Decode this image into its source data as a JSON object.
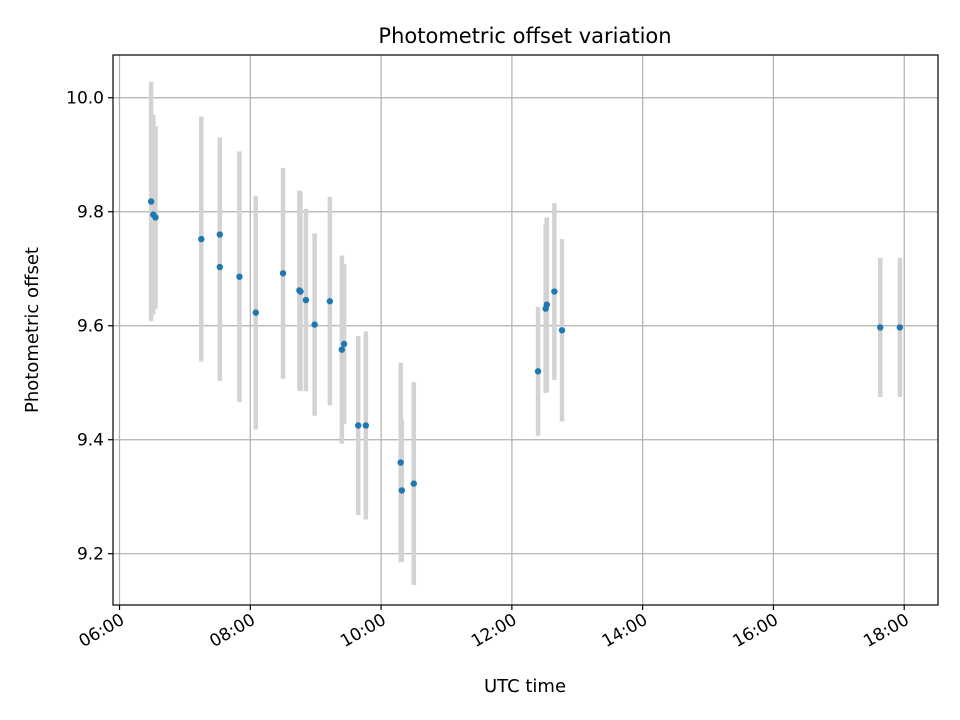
{
  "chart_data": {
    "type": "scatter",
    "title": "Photometric offset variation",
    "xlabel": "UTC time",
    "ylabel": "Photometric offset",
    "x_is_time_of_day": true,
    "xlim": [
      "05:54",
      "18:31"
    ],
    "ylim": [
      9.11,
      10.075
    ],
    "x_ticks": [
      "06:00",
      "08:00",
      "10:00",
      "12:00",
      "14:00",
      "16:00",
      "18:00"
    ],
    "y_ticks": [
      9.2,
      9.4,
      9.6,
      9.8,
      10.0
    ],
    "y_tick_labels": [
      "9.2",
      "9.4",
      "9.6",
      "9.8",
      "10.0"
    ],
    "grid": true,
    "error_bar_color": "#d3d3d3",
    "marker_color": "#1f77b4",
    "points": [
      {
        "x": "06:29",
        "y": 9.818,
        "err": 0.21
      },
      {
        "x": "06:31",
        "y": 9.795,
        "err": 0.175
      },
      {
        "x": "06:33",
        "y": 9.79,
        "err": 0.16
      },
      {
        "x": "07:15",
        "y": 9.752,
        "err": 0.215
      },
      {
        "x": "07:32",
        "y": 9.76,
        "err": 0.17
      },
      {
        "x": "07:32",
        "y": 9.703,
        "err": 0.2
      },
      {
        "x": "07:50",
        "y": 9.686,
        "err": 0.22
      },
      {
        "x": "08:05",
        "y": 9.623,
        "err": 0.205
      },
      {
        "x": "08:30",
        "y": 9.692,
        "err": 0.185
      },
      {
        "x": "08:45",
        "y": 9.662,
        "err": 0.175
      },
      {
        "x": "08:46",
        "y": 9.66,
        "err": 0.175
      },
      {
        "x": "08:51",
        "y": 9.645,
        "err": 0.16
      },
      {
        "x": "08:59",
        "y": 9.602,
        "err": 0.16
      },
      {
        "x": "09:13",
        "y": 9.643,
        "err": 0.183
      },
      {
        "x": "09:24",
        "y": 9.558,
        "err": 0.165
      },
      {
        "x": "09:26",
        "y": 9.568,
        "err": 0.14
      },
      {
        "x": "09:39",
        "y": 9.425,
        "err": 0.157
      },
      {
        "x": "09:46",
        "y": 9.425,
        "err": 0.165
      },
      {
        "x": "10:18",
        "y": 9.36,
        "err": 0.175
      },
      {
        "x": "10:19",
        "y": 9.311,
        "err": 0.125
      },
      {
        "x": "10:30",
        "y": 9.323,
        "err": 0.178
      },
      {
        "x": "12:24",
        "y": 9.52,
        "err": 0.113
      },
      {
        "x": "12:31",
        "y": 9.63,
        "err": 0.148
      },
      {
        "x": "12:32",
        "y": 9.637,
        "err": 0.153
      },
      {
        "x": "12:39",
        "y": 9.66,
        "err": 0.155
      },
      {
        "x": "12:46",
        "y": 9.592,
        "err": 0.16
      },
      {
        "x": "17:38",
        "y": 9.597,
        "err": 0.122
      },
      {
        "x": "17:56",
        "y": 9.597,
        "err": 0.122
      }
    ]
  }
}
